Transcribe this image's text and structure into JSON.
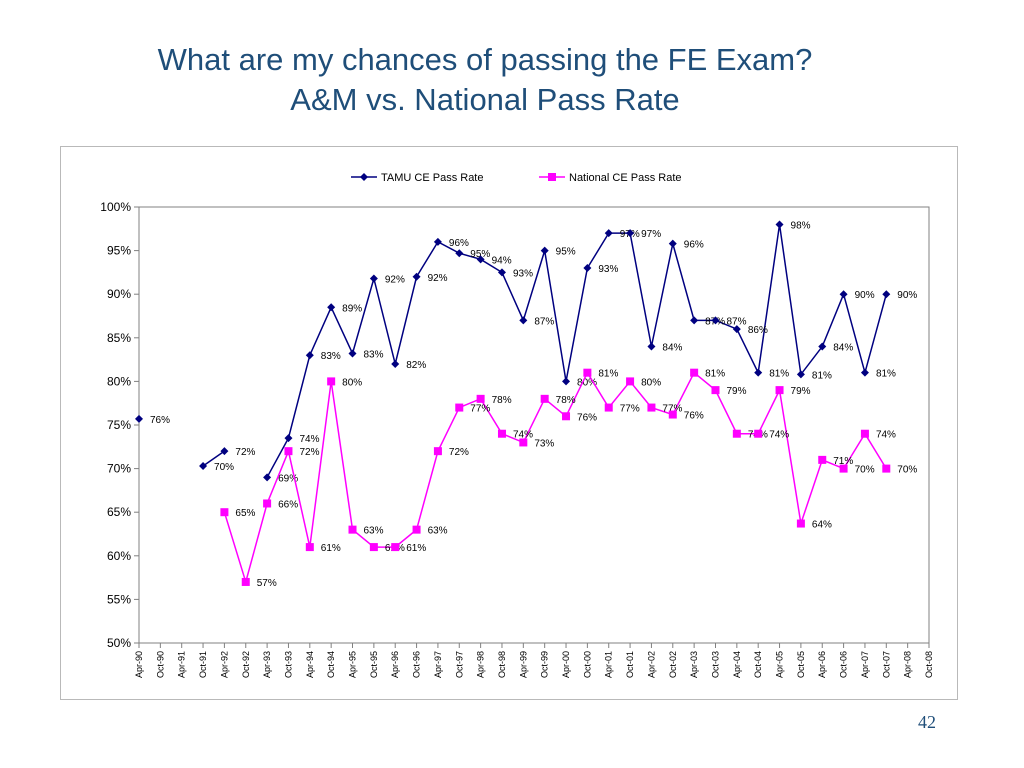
{
  "slide": {
    "title_line1": "What are my chances of passing the FE Exam?",
    "title_line2": "A&M vs. National Pass Rate",
    "page_number": "42"
  },
  "chart_data": {
    "type": "line",
    "title": "",
    "xlabel": "",
    "ylabel": "",
    "ylim": [
      0.5,
      1.0
    ],
    "yticks": [
      "50%",
      "55%",
      "60%",
      "65%",
      "70%",
      "75%",
      "80%",
      "85%",
      "90%",
      "95%",
      "100%"
    ],
    "grid": false,
    "legend_position": "top",
    "categories": [
      "Apr-90",
      "Oct-90",
      "Apr-91",
      "Oct-91",
      "Apr-92",
      "Oct-92",
      "Apr-93",
      "Oct-93",
      "Apr-94",
      "Oct-94",
      "Apr-95",
      "Oct-95",
      "Apr-96",
      "Oct-96",
      "Apr-97",
      "Oct-97",
      "Apr-98",
      "Oct-98",
      "Apr-99",
      "Oct-99",
      "Apr-00",
      "Oct-00",
      "Apr-01",
      "Oct-01",
      "Apr-02",
      "Oct-02",
      "Apr-03",
      "Oct-03",
      "Apr-04",
      "Oct-04",
      "Apr-05",
      "Oct-05",
      "Apr-06",
      "Oct-06",
      "Apr-07",
      "Oct-07",
      "Apr-08",
      "Oct-08"
    ],
    "series": [
      {
        "name": "TAMU CE Pass Rate",
        "color": "#000080",
        "marker": "diamond",
        "values": [
          0.757,
          null,
          null,
          0.703,
          0.72,
          null,
          0.69,
          0.735,
          0.83,
          0.885,
          0.832,
          0.918,
          0.82,
          0.92,
          0.96,
          0.947,
          0.94,
          0.925,
          0.87,
          0.95,
          0.8,
          0.93,
          0.97,
          0.97,
          0.84,
          0.958,
          0.87,
          0.87,
          0.86,
          0.81,
          0.98,
          0.808,
          0.84,
          0.9,
          0.81,
          0.9,
          null,
          null
        ],
        "labels": [
          "76%",
          null,
          null,
          "70%",
          "72%",
          null,
          "69%",
          "74%",
          "83%",
          "89%",
          "83%",
          "92%",
          "82%",
          "92%",
          "96%",
          "95%",
          "94%",
          "93%",
          "87%",
          "95%",
          "80%",
          "93%",
          "97%",
          "97%",
          "84%",
          "96%",
          "87%",
          "87%",
          "86%",
          "81%",
          "98%",
          "81%",
          "84%",
          "90%",
          "81%",
          "90%",
          null,
          null
        ]
      },
      {
        "name": "National CE Pass Rate",
        "color": "#ff00ff",
        "marker": "square",
        "values": [
          null,
          null,
          null,
          null,
          0.65,
          0.57,
          0.66,
          0.72,
          0.61,
          0.8,
          0.63,
          0.61,
          0.61,
          0.63,
          0.72,
          0.77,
          0.78,
          0.74,
          0.73,
          0.78,
          0.76,
          0.81,
          0.77,
          0.8,
          0.77,
          0.762,
          0.81,
          0.79,
          0.74,
          0.74,
          0.79,
          0.637,
          0.71,
          0.7,
          0.74,
          0.7,
          null,
          null
        ],
        "labels": [
          null,
          null,
          null,
          null,
          "65%",
          "57%",
          "66%",
          "72%",
          "61%",
          "80%",
          "63%",
          "61%",
          "61%",
          "63%",
          "72%",
          "77%",
          "78%",
          "74%",
          "73%",
          "78%",
          "76%",
          "81%",
          "77%",
          "80%",
          "77%",
          "76%",
          "81%",
          "79%",
          "74%",
          "74%",
          "79%",
          "64%",
          "71%",
          "70%",
          "74%",
          "70%",
          null,
          null
        ]
      }
    ]
  }
}
